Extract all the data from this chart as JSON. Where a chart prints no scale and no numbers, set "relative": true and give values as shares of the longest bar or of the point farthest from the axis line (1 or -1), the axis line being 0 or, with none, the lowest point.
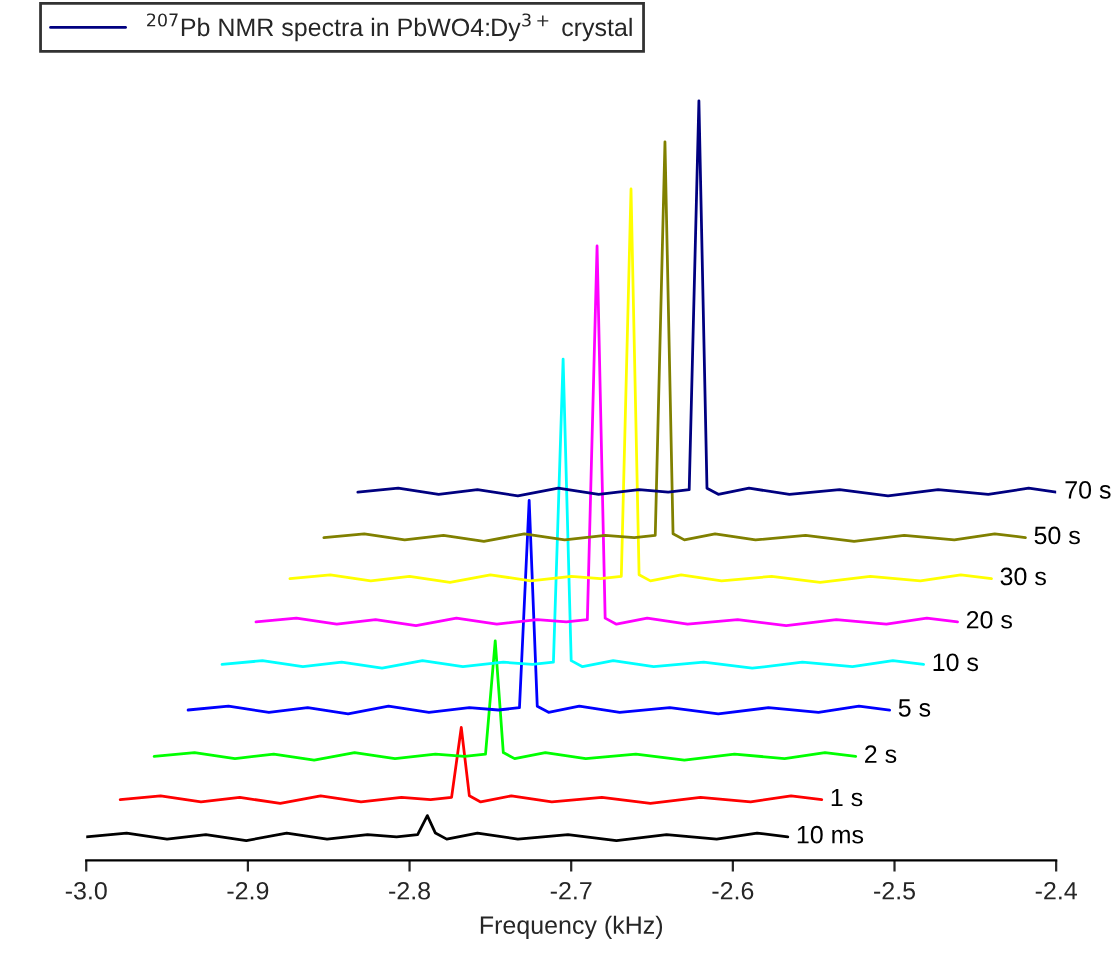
{
  "chart_data": {
    "type": "line",
    "relative": true,
    "xlabel": "Frequency (kHz)",
    "legend": "top",
    "xlim": [
      -3.0,
      -2.4
    ],
    "xticks": [
      {
        "value": -3.0,
        "label": "-3.0"
      },
      -2.9,
      -2.8,
      -2.7,
      -2.6,
      -2.5,
      {
        "value": -2.4,
        "label": "-2.4"
      }
    ],
    "tick_labels": "x",
    "grid": false,
    "annotations": [
      {
        "text": "10 ms",
        "x": -2.566,
        "y": 0.031
      },
      {
        "text": "1 s",
        "x": -2.545,
        "y": 0.08
      },
      {
        "text": "2 s",
        "x": -2.524,
        "y": 0.137
      },
      {
        "text": "5 s",
        "x": -2.503,
        "y": 0.198
      },
      {
        "text": "10 s",
        "x": -2.482,
        "y": 0.258
      },
      {
        "text": "20 s",
        "x": -2.461,
        "y": 0.314
      },
      {
        "text": "30 s",
        "x": -2.44,
        "y": 0.371
      },
      {
        "text": "50 s",
        "x": -2.419,
        "y": 0.425
      },
      {
        "text": "70 s",
        "x": -2.4,
        "y": 0.485
      }
    ],
    "series": [
      {
        "color": "#000000",
        "x": [
          -3.0,
          -2.975,
          -2.95,
          -2.926,
          -2.901,
          -2.876,
          -2.851,
          -2.826,
          -2.808,
          -2.795,
          -2.789,
          -2.784,
          -2.777,
          -2.758,
          -2.733,
          -2.702,
          -2.672,
          -2.641,
          -2.61,
          -2.585,
          -2.566
        ],
        "values": [
          0.031,
          0.036,
          0.028,
          0.034,
          0.026,
          0.036,
          0.028,
          0.034,
          0.031,
          0.034,
          0.059,
          0.036,
          0.028,
          0.036,
          0.028,
          0.034,
          0.026,
          0.034,
          0.028,
          0.036,
          0.031
        ]
      },
      {
        "color": "#ff0000",
        "x": [
          -2.979,
          -2.954,
          -2.929,
          -2.905,
          -2.88,
          -2.855,
          -2.83,
          -2.805,
          -2.787,
          -2.774,
          -2.768,
          -2.763,
          -2.756,
          -2.737,
          -2.712,
          -2.681,
          -2.651,
          -2.62,
          -2.589,
          -2.564,
          -2.545
        ],
        "values": [
          0.08,
          0.085,
          0.077,
          0.083,
          0.075,
          0.085,
          0.077,
          0.083,
          0.08,
          0.083,
          0.175,
          0.085,
          0.077,
          0.085,
          0.077,
          0.083,
          0.075,
          0.083,
          0.077,
          0.085,
          0.08
        ]
      },
      {
        "color": "#00ff00",
        "x": [
          -2.958,
          -2.933,
          -2.908,
          -2.884,
          -2.859,
          -2.834,
          -2.809,
          -2.784,
          -2.766,
          -2.753,
          -2.747,
          -2.742,
          -2.735,
          -2.716,
          -2.691,
          -2.66,
          -2.63,
          -2.599,
          -2.568,
          -2.543,
          -2.524
        ],
        "values": [
          0.137,
          0.142,
          0.134,
          0.14,
          0.132,
          0.142,
          0.134,
          0.14,
          0.137,
          0.14,
          0.289,
          0.142,
          0.134,
          0.142,
          0.134,
          0.14,
          0.132,
          0.14,
          0.134,
          0.142,
          0.137
        ]
      },
      {
        "color": "#0000ff",
        "x": [
          -2.937,
          -2.912,
          -2.887,
          -2.863,
          -2.838,
          -2.813,
          -2.788,
          -2.763,
          -2.745,
          -2.732,
          -2.726,
          -2.721,
          -2.714,
          -2.695,
          -2.67,
          -2.639,
          -2.609,
          -2.578,
          -2.547,
          -2.522,
          -2.503
        ],
        "values": [
          0.198,
          0.203,
          0.195,
          0.201,
          0.193,
          0.203,
          0.195,
          0.201,
          0.198,
          0.201,
          0.474,
          0.203,
          0.195,
          0.203,
          0.195,
          0.201,
          0.193,
          0.201,
          0.195,
          0.203,
          0.198
        ]
      },
      {
        "color": "#00ffff",
        "x": [
          -2.916,
          -2.891,
          -2.866,
          -2.842,
          -2.817,
          -2.792,
          -2.767,
          -2.742,
          -2.724,
          -2.711,
          -2.705,
          -2.7,
          -2.693,
          -2.674,
          -2.649,
          -2.618,
          -2.588,
          -2.557,
          -2.526,
          -2.501,
          -2.482
        ],
        "values": [
          0.258,
          0.263,
          0.255,
          0.261,
          0.253,
          0.263,
          0.255,
          0.261,
          0.258,
          0.261,
          0.66,
          0.263,
          0.255,
          0.263,
          0.255,
          0.261,
          0.253,
          0.261,
          0.255,
          0.263,
          0.258
        ]
      },
      {
        "color": "#ff00ff",
        "x": [
          -2.895,
          -2.87,
          -2.845,
          -2.821,
          -2.796,
          -2.771,
          -2.746,
          -2.721,
          -2.703,
          -2.69,
          -2.684,
          -2.679,
          -2.672,
          -2.653,
          -2.628,
          -2.597,
          -2.567,
          -2.536,
          -2.505,
          -2.48,
          -2.461
        ],
        "values": [
          0.314,
          0.319,
          0.311,
          0.317,
          0.309,
          0.319,
          0.311,
          0.317,
          0.314,
          0.317,
          0.809,
          0.319,
          0.311,
          0.319,
          0.311,
          0.317,
          0.309,
          0.317,
          0.311,
          0.319,
          0.314
        ]
      },
      {
        "color": "#ffff00",
        "x": [
          -2.874,
          -2.849,
          -2.824,
          -2.8,
          -2.775,
          -2.75,
          -2.725,
          -2.7,
          -2.682,
          -2.669,
          -2.663,
          -2.658,
          -2.651,
          -2.632,
          -2.607,
          -2.576,
          -2.546,
          -2.515,
          -2.484,
          -2.459,
          -2.44
        ],
        "values": [
          0.371,
          0.376,
          0.368,
          0.374,
          0.366,
          0.376,
          0.368,
          0.374,
          0.371,
          0.374,
          0.884,
          0.376,
          0.368,
          0.376,
          0.368,
          0.374,
          0.366,
          0.374,
          0.368,
          0.376,
          0.371
        ]
      },
      {
        "color": "#808000",
        "x": [
          -2.853,
          -2.828,
          -2.803,
          -2.779,
          -2.754,
          -2.729,
          -2.704,
          -2.679,
          -2.661,
          -2.648,
          -2.642,
          -2.637,
          -2.63,
          -2.611,
          -2.586,
          -2.555,
          -2.525,
          -2.494,
          -2.463,
          -2.438,
          -2.419
        ],
        "values": [
          0.425,
          0.43,
          0.422,
          0.428,
          0.42,
          0.43,
          0.422,
          0.428,
          0.425,
          0.428,
          0.946,
          0.43,
          0.422,
          0.43,
          0.422,
          0.428,
          0.42,
          0.428,
          0.422,
          0.43,
          0.425
        ]
      },
      {
        "name": "$^{207}$Pb NMR spectra in PbWO4:Dy$^{3+}$ crystal",
        "color": "#000080",
        "x": [
          -2.832,
          -2.807,
          -2.782,
          -2.758,
          -2.733,
          -2.708,
          -2.683,
          -2.658,
          -2.64,
          -2.627,
          -2.621,
          -2.616,
          -2.609,
          -2.59,
          -2.565,
          -2.534,
          -2.504,
          -2.473,
          -2.442,
          -2.417,
          -2.4
        ],
        "values": [
          0.485,
          0.49,
          0.482,
          0.488,
          0.48,
          0.49,
          0.482,
          0.488,
          0.485,
          0.488,
          1.0,
          0.49,
          0.482,
          0.49,
          0.482,
          0.488,
          0.48,
          0.488,
          0.482,
          0.49,
          0.485
        ]
      }
    ]
  }
}
